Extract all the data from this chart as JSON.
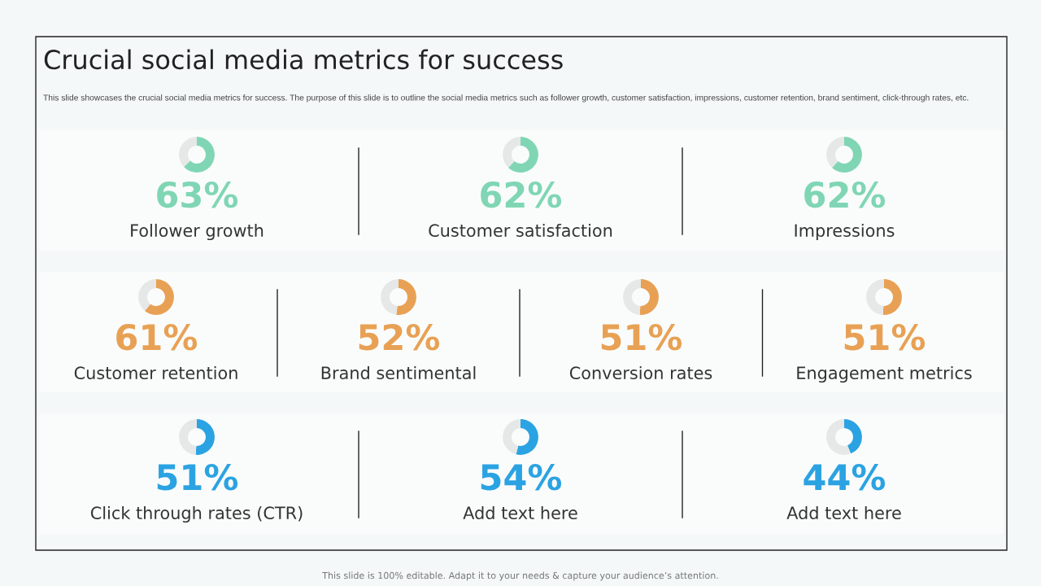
{
  "chart_data": [
    {
      "type": "other",
      "title": "Crucial social media metrics for success",
      "subtitle": "This slide showcases the crucial social media metrics for success. The purpose of this slide is to outline the social media metrics such as follower growth, customer satisfaction, impressions, customer retention, brand sentiment, click-through rates, etc.",
      "annotations": [
        "This slide is 100% editable. Adapt it to your needs & capture your audience’s attention."
      ]
    },
    {
      "type": "donut",
      "title": "Follower growth",
      "categories": [
        null,
        null
      ],
      "values": [
        63,
        37
      ],
      "colors": [
        "#80d6b4",
        "#e6e8e8"
      ],
      "value_labels": [
        "63%",
        null
      ]
    },
    {
      "type": "donut",
      "title": "Customer satisfaction",
      "categories": [
        null,
        null
      ],
      "values": [
        62,
        38
      ],
      "colors": [
        "#80d6b4",
        "#e6e8e8"
      ],
      "value_labels": [
        "62%",
        null
      ]
    },
    {
      "type": "donut",
      "title": "Impressions",
      "categories": [
        null,
        null
      ],
      "values": [
        62,
        38
      ],
      "colors": [
        "#80d6b4",
        "#e6e8e8"
      ],
      "value_labels": [
        "62%",
        null
      ]
    },
    {
      "type": "donut",
      "title": "Customer retention",
      "categories": [
        null,
        null
      ],
      "values": [
        61,
        39
      ],
      "colors": [
        "#e8a154",
        "#e6e8e8"
      ],
      "value_labels": [
        "61%",
        null
      ]
    },
    {
      "type": "donut",
      "title": "Brand sentimental",
      "categories": [
        null,
        null
      ],
      "values": [
        52,
        48
      ],
      "colors": [
        "#e8a154",
        "#e6e8e8"
      ],
      "value_labels": [
        "52%",
        null
      ]
    },
    {
      "type": "donut",
      "title": "Conversion rates",
      "categories": [
        null,
        null
      ],
      "values": [
        51,
        49
      ],
      "colors": [
        "#e8a154",
        "#e6e8e8"
      ],
      "value_labels": [
        "51%",
        null
      ]
    },
    {
      "type": "donut",
      "title": "Engagement metrics",
      "categories": [
        null,
        null
      ],
      "values": [
        51,
        49
      ],
      "colors": [
        "#e8a154",
        "#e6e8e8"
      ],
      "value_labels": [
        "51%",
        null
      ]
    },
    {
      "type": "donut",
      "title": "Click through rates (CTR)",
      "categories": [
        null,
        null
      ],
      "values": [
        51,
        49
      ],
      "colors": [
        "#2ba3e2",
        "#e6e8e8"
      ],
      "value_labels": [
        "51%",
        null
      ]
    },
    {
      "type": "donut",
      "title": "Add text here",
      "categories": [
        null,
        null
      ],
      "values": [
        54,
        46
      ],
      "colors": [
        "#2ba3e2",
        "#e6e8e8"
      ],
      "value_labels": [
        "54%",
        null
      ]
    },
    {
      "type": "donut",
      "title": "Add text here",
      "categories": [
        null,
        null
      ],
      "values": [
        44,
        56
      ],
      "colors": [
        "#2ba3e2",
        "#e6e8e8"
      ],
      "value_labels": [
        "44%",
        null
      ]
    }
  ]
}
